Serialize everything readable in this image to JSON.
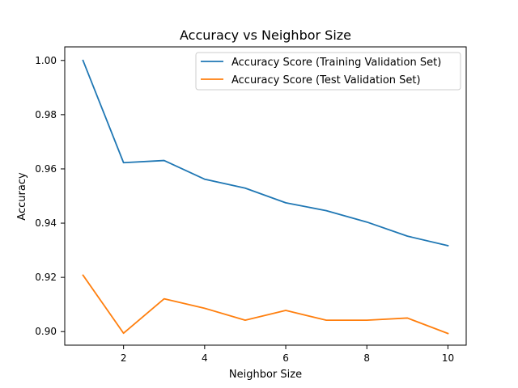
{
  "chart_data": {
    "type": "line",
    "title": "Accuracy vs Neighbor Size",
    "xlabel": "Neighbor Size",
    "ylabel": "Accuracy",
    "x": [
      1,
      2,
      3,
      4,
      5,
      6,
      7,
      8,
      9,
      10
    ],
    "xlim": [
      0.55,
      10.45
    ],
    "ylim": [
      0.895,
      1.005
    ],
    "xticks": [
      2,
      4,
      6,
      8,
      10
    ],
    "xtick_labels": [
      "2",
      "4",
      "6",
      "8",
      "10"
    ],
    "yticks": [
      0.9,
      0.92,
      0.94,
      0.96,
      0.98,
      1.0
    ],
    "ytick_labels": [
      "0.90",
      "0.92",
      "0.94",
      "0.96",
      "0.98",
      "1.00"
    ],
    "grid": false,
    "legend_position": "top-right",
    "series": [
      {
        "name": "Accuracy Score (Training Validation Set)",
        "color": "#1f77b4",
        "values": [
          1.0,
          0.9623,
          0.9631,
          0.9562,
          0.9529,
          0.9475,
          0.9446,
          0.9404,
          0.9352,
          0.9317
        ]
      },
      {
        "name": "Accuracy Score (Test Validation Set)",
        "color": "#ff7f0e",
        "values": [
          0.9208,
          0.8994,
          0.9121,
          0.9086,
          0.9042,
          0.9078,
          0.9042,
          0.9042,
          0.905,
          0.8993
        ]
      }
    ]
  }
}
